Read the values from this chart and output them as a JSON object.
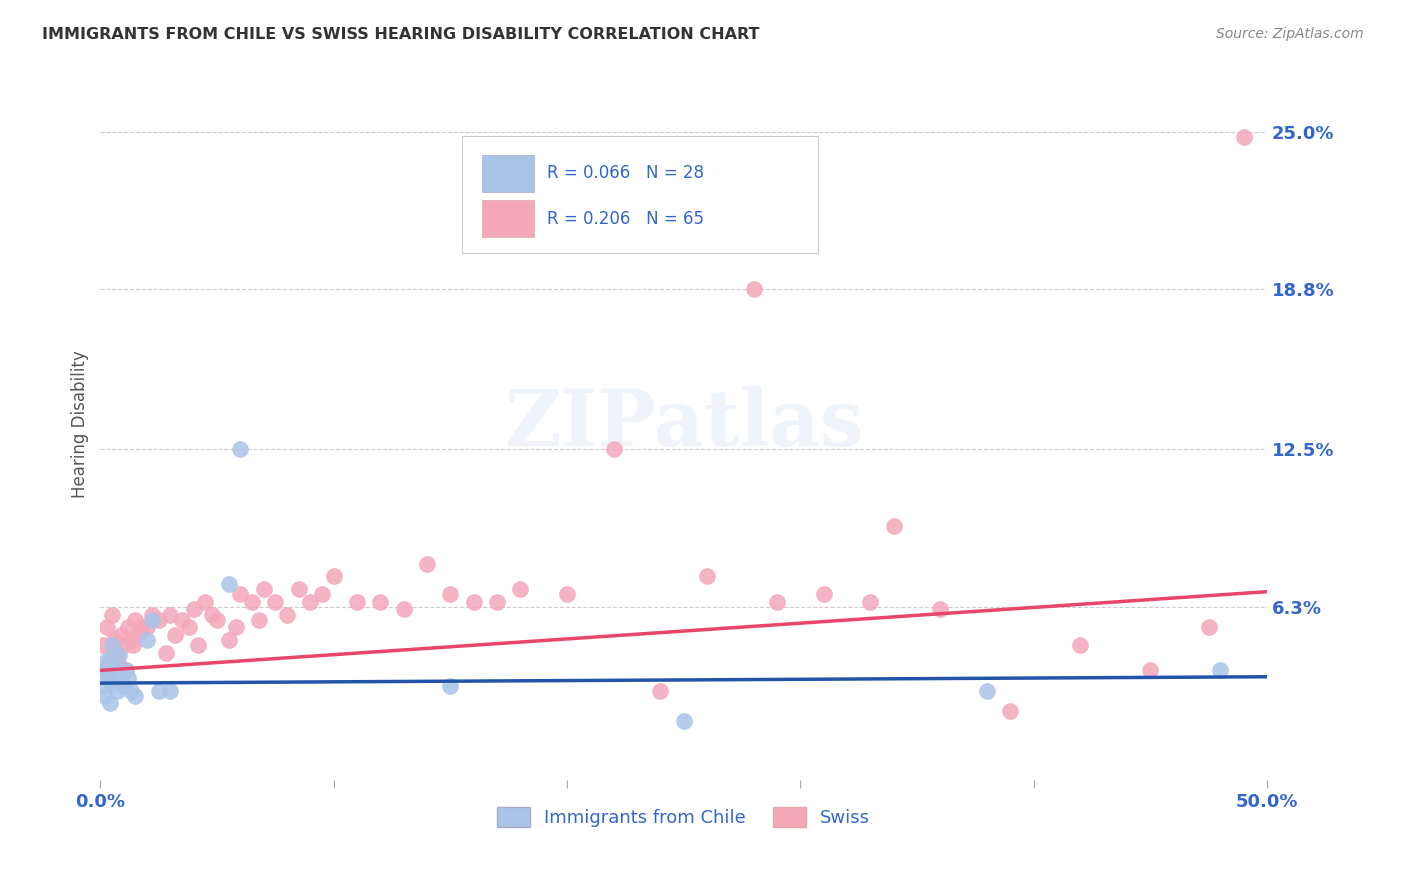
{
  "title": "IMMIGRANTS FROM CHILE VS SWISS HEARING DISABILITY CORRELATION CHART",
  "source": "Source: ZipAtlas.com",
  "ylabel": "Hearing Disability",
  "xlim": [
    0.0,
    0.5
  ],
  "ylim": [
    -0.005,
    0.275
  ],
  "ytick_positions": [
    0.063,
    0.125,
    0.188,
    0.25
  ],
  "ytick_labels": [
    "6.3%",
    "12.5%",
    "18.8%",
    "25.0%"
  ],
  "grid_color": "#cccccc",
  "background_color": "#ffffff",
  "chile_color": "#aac4e8",
  "swiss_color": "#f4a7b9",
  "chile_line_color": "#2255aa",
  "swiss_line_color": "#e8456a",
  "legend_text_color": "#3366cc",
  "chile_scatter_x": [
    0.001,
    0.002,
    0.002,
    0.003,
    0.003,
    0.004,
    0.004,
    0.005,
    0.005,
    0.006,
    0.007,
    0.008,
    0.009,
    0.01,
    0.011,
    0.012,
    0.013,
    0.015,
    0.02,
    0.022,
    0.025,
    0.03,
    0.055,
    0.06,
    0.15,
    0.25,
    0.38,
    0.48
  ],
  "chile_scatter_y": [
    0.032,
    0.038,
    0.028,
    0.042,
    0.035,
    0.04,
    0.025,
    0.048,
    0.033,
    0.038,
    0.03,
    0.044,
    0.036,
    0.032,
    0.038,
    0.035,
    0.03,
    0.028,
    0.05,
    0.058,
    0.03,
    0.03,
    0.072,
    0.125,
    0.032,
    0.018,
    0.03,
    0.038
  ],
  "swiss_scatter_x": [
    0.001,
    0.002,
    0.003,
    0.004,
    0.005,
    0.006,
    0.007,
    0.008,
    0.009,
    0.01,
    0.011,
    0.012,
    0.013,
    0.014,
    0.015,
    0.016,
    0.018,
    0.02,
    0.022,
    0.025,
    0.028,
    0.03,
    0.032,
    0.035,
    0.038,
    0.04,
    0.042,
    0.045,
    0.048,
    0.05,
    0.055,
    0.058,
    0.06,
    0.065,
    0.068,
    0.07,
    0.075,
    0.08,
    0.085,
    0.09,
    0.095,
    0.1,
    0.11,
    0.12,
    0.13,
    0.14,
    0.15,
    0.16,
    0.17,
    0.18,
    0.2,
    0.22,
    0.24,
    0.26,
    0.29,
    0.31,
    0.33,
    0.36,
    0.39,
    0.42,
    0.28,
    0.34,
    0.45,
    0.475,
    0.49
  ],
  "swiss_scatter_y": [
    0.048,
    0.038,
    0.055,
    0.042,
    0.06,
    0.05,
    0.045,
    0.04,
    0.052,
    0.048,
    0.038,
    0.055,
    0.05,
    0.048,
    0.058,
    0.052,
    0.055,
    0.055,
    0.06,
    0.058,
    0.045,
    0.06,
    0.052,
    0.058,
    0.055,
    0.062,
    0.048,
    0.065,
    0.06,
    0.058,
    0.05,
    0.055,
    0.068,
    0.065,
    0.058,
    0.07,
    0.065,
    0.06,
    0.07,
    0.065,
    0.068,
    0.075,
    0.065,
    0.065,
    0.062,
    0.08,
    0.068,
    0.065,
    0.065,
    0.07,
    0.068,
    0.125,
    0.03,
    0.075,
    0.065,
    0.068,
    0.065,
    0.062,
    0.022,
    0.048,
    0.188,
    0.095,
    0.038,
    0.055,
    0.248
  ],
  "chile_slope": 0.005,
  "chile_intercept": 0.033,
  "swiss_slope": 0.062,
  "swiss_intercept": 0.038
}
